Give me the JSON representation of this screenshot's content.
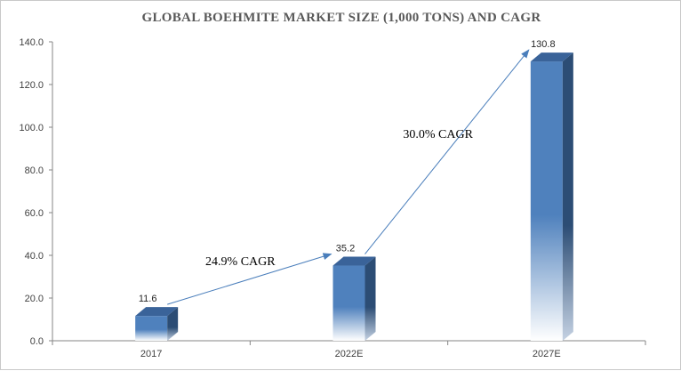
{
  "chart_data": {
    "type": "bar",
    "title": "GLOBAL BOEHMITE MARKET SIZE (1,000 TONS) AND CAGR",
    "categories": [
      "2017",
      "2022E",
      "2027E"
    ],
    "values": [
      11.6,
      35.2,
      130.8
    ],
    "value_labels": [
      "11.6",
      "35.2",
      "130.8"
    ],
    "ylim": [
      0,
      140
    ],
    "yticks": [
      0,
      20,
      40,
      60,
      80,
      100,
      120,
      140
    ],
    "ytick_labels": [
      "0.0",
      "20.0",
      "40.0",
      "60.0",
      "80.0",
      "100.0",
      "120.0",
      "140.0"
    ],
    "grid": false,
    "bar_color": "#4f81bd",
    "bar_style": "3d-gradient",
    "annotations": [
      {
        "text": "24.9% CAGR",
        "from_category": "2017",
        "to_category": "2022E"
      },
      {
        "text": "30.0% CAGR",
        "from_category": "2022E",
        "to_category": "2027E"
      }
    ]
  },
  "colors": {
    "bar_front_top": "#4f81bd",
    "bar_side": "#2c4d75",
    "bar_top": "#3a6399",
    "arrow": "#4a7ebb",
    "axis": "#868686"
  }
}
